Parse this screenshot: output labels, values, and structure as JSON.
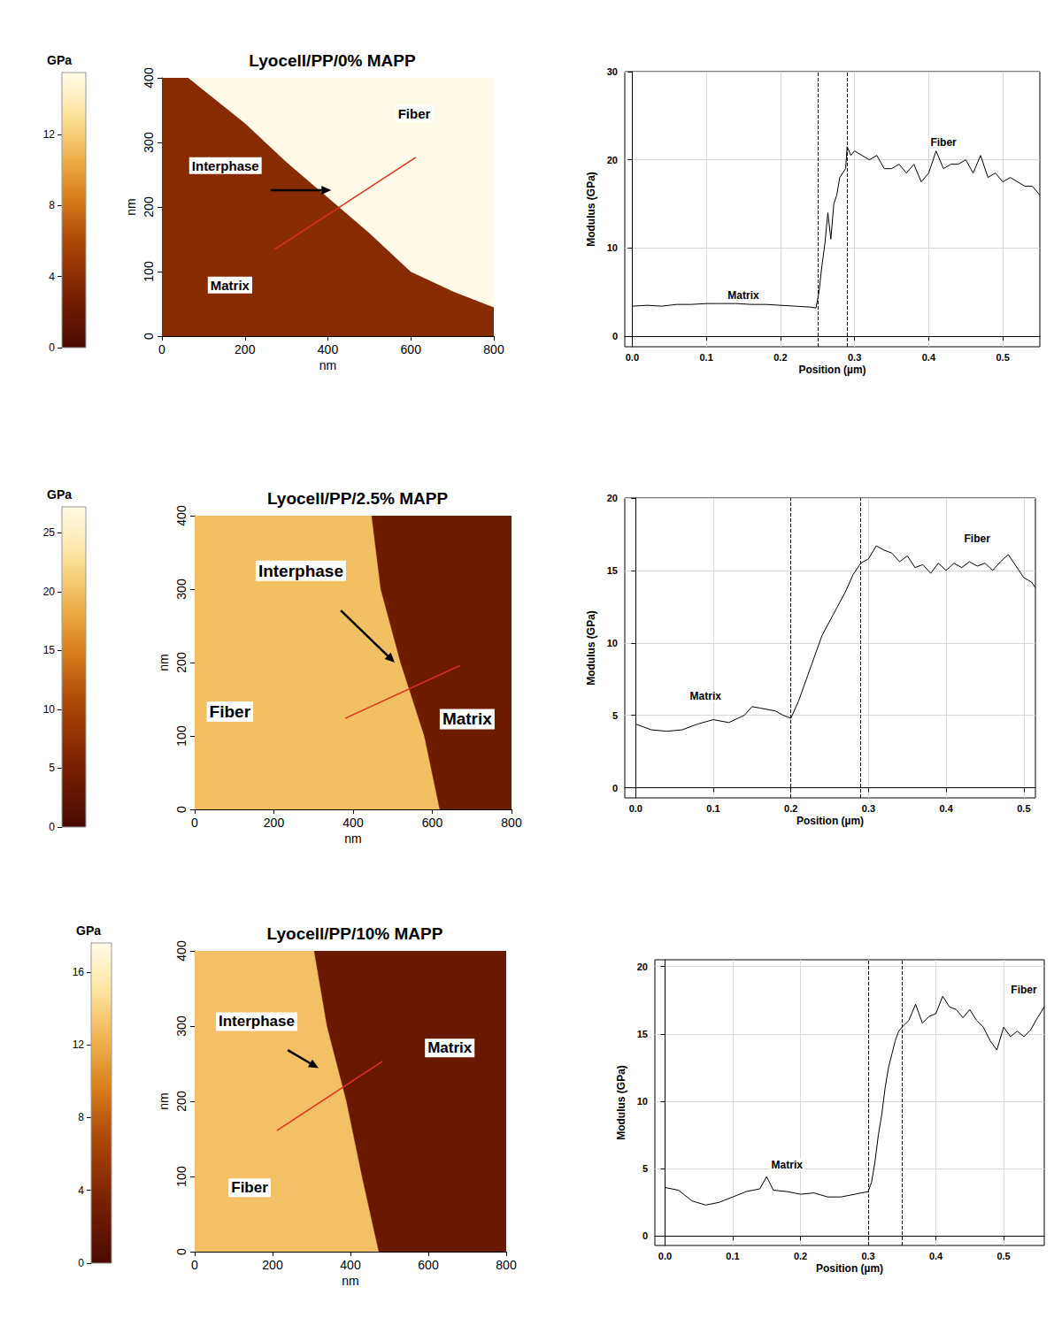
{
  "chart_data": [
    {
      "type": "map",
      "title": "Lyocell/PP/0% MAPP",
      "colorbar": {
        "label": "GPa",
        "range": [
          0,
          15.5
        ],
        "ticks": [
          0,
          4,
          8,
          12
        ]
      },
      "xlabel": "nm",
      "ylabel": "nm",
      "xlim": [
        0,
        800
      ],
      "xticks": [
        0,
        200,
        400,
        600,
        800
      ],
      "ylim": [
        0,
        400
      ],
      "yticks": [
        0,
        100,
        200,
        300,
        400
      ],
      "regions": [
        {
          "modulus": 3.8,
          "points": [
            [
              0,
              0
            ],
            [
              0,
              400
            ],
            [
              64,
              400
            ],
            [
              200,
              330
            ],
            [
              300,
              270
            ],
            [
              400,
              215
            ],
            [
              500,
              160
            ],
            [
              600,
              100
            ],
            [
              700,
              70
            ],
            [
              800,
              45
            ],
            [
              800,
              0
            ]
          ]
        },
        {
          "modulus": 20,
          "points": [
            [
              64,
              400
            ],
            [
              200,
              330
            ],
            [
              300,
              270
            ],
            [
              400,
              215
            ],
            [
              500,
              160
            ],
            [
              600,
              100
            ],
            [
              700,
              70
            ],
            [
              800,
              45
            ],
            [
              800,
              400
            ]
          ]
        }
      ],
      "labels": [
        {
          "text": "Interphase",
          "at": [
            153,
            264
          ]
        },
        {
          "text": "Fiber",
          "at": [
            608,
            345
          ]
        },
        {
          "text": "Matrix",
          "at": [
            164,
            79
          ]
        }
      ],
      "arrow": [
        [
          262,
          226
        ],
        [
          408,
          226
        ]
      ],
      "profile_line": [
        [
          271,
          134
        ],
        [
          612,
          277
        ]
      ]
    },
    {
      "type": "line",
      "xlabel": "Position (µm)",
      "ylabel": "Modulus (GPa)",
      "xlim": [
        -0.01,
        0.55
      ],
      "xticks": [
        {
          "value": 0,
          "label": "0.0"
        },
        0.1,
        0.2,
        0.3,
        0.4,
        0.5
      ],
      "ylim": [
        -1.2,
        30
      ],
      "yticks": [
        0,
        10,
        20,
        30
      ],
      "grid": true,
      "x": [
        0,
        0.02,
        0.04,
        0.06,
        0.08,
        0.1,
        0.12,
        0.14,
        0.16,
        0.18,
        0.2,
        0.22,
        0.24,
        0.248,
        0.252,
        0.256,
        0.26,
        0.264,
        0.268,
        0.272,
        0.276,
        0.28,
        0.284,
        0.288,
        0.29,
        0.295,
        0.3,
        0.31,
        0.32,
        0.33,
        0.34,
        0.35,
        0.36,
        0.37,
        0.38,
        0.39,
        0.4,
        0.41,
        0.42,
        0.43,
        0.44,
        0.45,
        0.46,
        0.47,
        0.48,
        0.49,
        0.5,
        0.51,
        0.52,
        0.53,
        0.54,
        0.55
      ],
      "values": [
        3.4,
        3.5,
        3.4,
        3.6,
        3.6,
        3.7,
        3.7,
        3.7,
        3.6,
        3.6,
        3.5,
        3.4,
        3.3,
        3.2,
        5,
        8,
        10.5,
        14,
        11,
        15,
        16,
        18,
        18.5,
        19,
        21.5,
        20.5,
        21,
        20.5,
        20,
        20.5,
        19,
        19,
        19.5,
        18.5,
        19.5,
        17.5,
        18.5,
        21,
        19,
        19.5,
        19.5,
        20,
        18.5,
        20.5,
        18,
        18.5,
        17.5,
        18,
        17.5,
        17,
        17,
        16
      ],
      "boundaries": [
        0.248,
        0.29
      ],
      "labels": [
        {
          "text": "Matrix",
          "at": [
            0.15,
            4.6
          ]
        },
        {
          "text": "Fiber",
          "at": [
            0.42,
            22
          ]
        }
      ]
    },
    {
      "type": "map",
      "title": "Lyocell/PP/2.5% MAPP",
      "colorbar": {
        "label": "GPa",
        "range": [
          0,
          27.2
        ],
        "ticks": [
          0,
          5,
          10,
          15,
          20,
          25
        ]
      },
      "xlabel": "nm",
      "ylabel": "nm",
      "xlim": [
        0,
        800
      ],
      "xticks": [
        0,
        200,
        400,
        600,
        800
      ],
      "ylim": [
        0,
        400
      ],
      "yticks": [
        0,
        100,
        200,
        300,
        400
      ],
      "regions": [
        {
          "modulus": 20,
          "points": [
            [
              0,
              0
            ],
            [
              0,
              400
            ],
            [
              447,
              400
            ],
            [
              470,
              300
            ],
            [
              520,
              200
            ],
            [
              580,
              100
            ],
            [
              619,
              0
            ]
          ]
        },
        {
          "modulus": 4,
          "points": [
            [
              447,
              400
            ],
            [
              470,
              300
            ],
            [
              520,
              200
            ],
            [
              580,
              100
            ],
            [
              619,
              0
            ],
            [
              800,
              0
            ],
            [
              800,
              400
            ]
          ]
        }
      ],
      "labels": [
        {
          "text": "Interphase",
          "at": [
            268,
            325
          ]
        },
        {
          "text": "Fiber",
          "at": [
            89,
            133
          ]
        },
        {
          "text": "Matrix",
          "at": [
            688,
            123
          ]
        }
      ],
      "arrow": [
        [
          369,
          271
        ],
        [
          505,
          200
        ]
      ],
      "profile_line": [
        [
          380,
          124
        ],
        [
          670,
          196
        ]
      ]
    },
    {
      "type": "line",
      "xlabel": "Position (µm)",
      "ylabel": "Modulus (GPa)",
      "xlim": [
        -0.014,
        0.515
      ],
      "xticks": [
        {
          "value": 0,
          "label": "0.0"
        },
        0.1,
        0.2,
        0.3,
        0.4,
        0.5
      ],
      "ylim": [
        -0.7,
        20
      ],
      "yticks": [
        0,
        5,
        10,
        15,
        20
      ],
      "grid": true,
      "x": [
        0,
        0.02,
        0.04,
        0.06,
        0.08,
        0.1,
        0.12,
        0.14,
        0.15,
        0.16,
        0.18,
        0.19,
        0.2,
        0.21,
        0.22,
        0.23,
        0.24,
        0.25,
        0.26,
        0.27,
        0.28,
        0.29,
        0.3,
        0.31,
        0.32,
        0.33,
        0.34,
        0.35,
        0.36,
        0.37,
        0.38,
        0.39,
        0.4,
        0.41,
        0.42,
        0.43,
        0.44,
        0.45,
        0.46,
        0.47,
        0.48,
        0.49,
        0.5,
        0.51,
        0.515
      ],
      "values": [
        4.4,
        4.0,
        3.9,
        4.0,
        4.4,
        4.7,
        4.5,
        5.0,
        5.6,
        5.5,
        5.3,
        5.0,
        4.8,
        6,
        7.5,
        9,
        10.5,
        11.5,
        12.5,
        13.5,
        14.7,
        15.5,
        15.8,
        16.7,
        16.4,
        16.2,
        15.6,
        16,
        15.2,
        15.4,
        14.8,
        15.5,
        15,
        15.5,
        15.2,
        15.6,
        15.3,
        15.5,
        15,
        15.6,
        16.1,
        15.3,
        14.5,
        14.2,
        13.8
      ],
      "boundaries": [
        0.2,
        0.29
      ],
      "labels": [
        {
          "text": "Matrix",
          "at": [
            0.09,
            6.3
          ]
        },
        {
          "text": "Fiber",
          "at": [
            0.44,
            17.2
          ]
        }
      ]
    },
    {
      "type": "map",
      "title": "Lyocell/PP/10% MAPP",
      "colorbar": {
        "label": "GPa",
        "range": [
          0,
          17.6
        ],
        "ticks": [
          0,
          4,
          8,
          12,
          16
        ]
      },
      "xlabel": "nm",
      "ylabel": "nm",
      "xlim": [
        0,
        800
      ],
      "xticks": [
        0,
        200,
        400,
        600,
        800
      ],
      "ylim": [
        0,
        400
      ],
      "yticks": [
        0,
        100,
        200,
        300,
        400
      ],
      "regions": [
        {
          "modulus": 13,
          "points": [
            [
              0,
              0
            ],
            [
              0,
              400
            ],
            [
              307,
              400
            ],
            [
              340,
              300
            ],
            [
              390,
              200
            ],
            [
              430,
              100
            ],
            [
              473,
              0
            ]
          ]
        },
        {
          "modulus": 2.2,
          "points": [
            [
              307,
              400
            ],
            [
              340,
              300
            ],
            [
              390,
              200
            ],
            [
              430,
              100
            ],
            [
              473,
              0
            ],
            [
              800,
              0
            ],
            [
              800,
              400
            ]
          ]
        }
      ],
      "labels": [
        {
          "text": "Interphase",
          "at": [
            159,
            306
          ]
        },
        {
          "text": "Matrix",
          "at": [
            655,
            271
          ]
        },
        {
          "text": "Fiber",
          "at": [
            141,
            85
          ]
        }
      ],
      "arrow": [
        [
          239,
          268
        ],
        [
          318,
          244
        ]
      ],
      "profile_line": [
        [
          211,
          161
        ],
        [
          482,
          253
        ]
      ]
    },
    {
      "type": "line",
      "xlabel": "Position (µm)",
      "ylabel": "Modulus (GPa)",
      "xlim": [
        -0.015,
        0.56
      ],
      "xticks": [
        {
          "value": 0,
          "label": "0.0"
        },
        0.1,
        0.2,
        0.3,
        0.4,
        0.5
      ],
      "ylim": [
        -0.7,
        20.5
      ],
      "yticks": [
        0,
        5,
        10,
        15,
        20
      ],
      "grid": true,
      "x": [
        0,
        0.02,
        0.04,
        0.06,
        0.08,
        0.1,
        0.12,
        0.14,
        0.15,
        0.16,
        0.18,
        0.2,
        0.22,
        0.24,
        0.26,
        0.28,
        0.29,
        0.3,
        0.305,
        0.31,
        0.315,
        0.32,
        0.325,
        0.33,
        0.335,
        0.34,
        0.345,
        0.35,
        0.36,
        0.37,
        0.38,
        0.39,
        0.4,
        0.41,
        0.42,
        0.43,
        0.44,
        0.45,
        0.46,
        0.47,
        0.48,
        0.49,
        0.5,
        0.51,
        0.52,
        0.53,
        0.54,
        0.55,
        0.56
      ],
      "values": [
        3.6,
        3.4,
        2.6,
        2.3,
        2.5,
        2.9,
        3.3,
        3.5,
        4.4,
        3.4,
        3.3,
        3.1,
        3.2,
        2.9,
        2.9,
        3.1,
        3.2,
        3.3,
        4,
        5.5,
        7.5,
        9,
        11,
        12.5,
        13.5,
        14.5,
        15.2,
        15.5,
        16,
        17.2,
        15.8,
        16.3,
        16.5,
        17.8,
        17,
        16.8,
        16.2,
        16.8,
        16,
        15.5,
        14.5,
        13.8,
        15.5,
        14.8,
        15.2,
        14.8,
        15.3,
        16.2,
        17
      ],
      "boundaries": [
        0.297,
        0.352
      ],
      "labels": [
        {
          "text": "Matrix",
          "at": [
            0.18,
            5.3
          ]
        },
        {
          "text": "Fiber",
          "at": [
            0.53,
            18.3
          ]
        }
      ]
    }
  ]
}
